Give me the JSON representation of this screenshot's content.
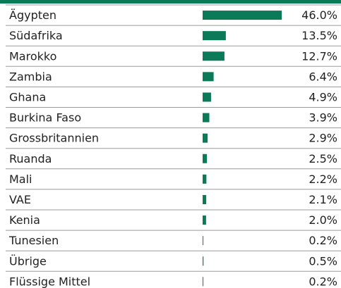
{
  "chart_data": {
    "type": "hbar",
    "color": "#0b7a57",
    "categories": [
      "Ägypten",
      "Südafrika",
      "Marokko",
      "Zambia",
      "Ghana",
      "Burkina Faso",
      "Grossbritannien",
      "Ruanda",
      "Mali",
      "VAE",
      "Kenia",
      "Tunesien",
      "Übrige",
      "Flüssige Mittel"
    ],
    "values": [
      46.0,
      13.5,
      12.7,
      6.4,
      4.9,
      3.9,
      2.9,
      2.5,
      2.2,
      2.1,
      2.0,
      0.2,
      0.5,
      0.2
    ],
    "value_labels": [
      "46.0%",
      "13.5%",
      "12.7%",
      "6.4%",
      "4.9%",
      "3.9%",
      "2.9%",
      "2.5%",
      "2.2%",
      "2.1%",
      "2.0%",
      "0.2%",
      "0.5%",
      "0.2%"
    ]
  }
}
